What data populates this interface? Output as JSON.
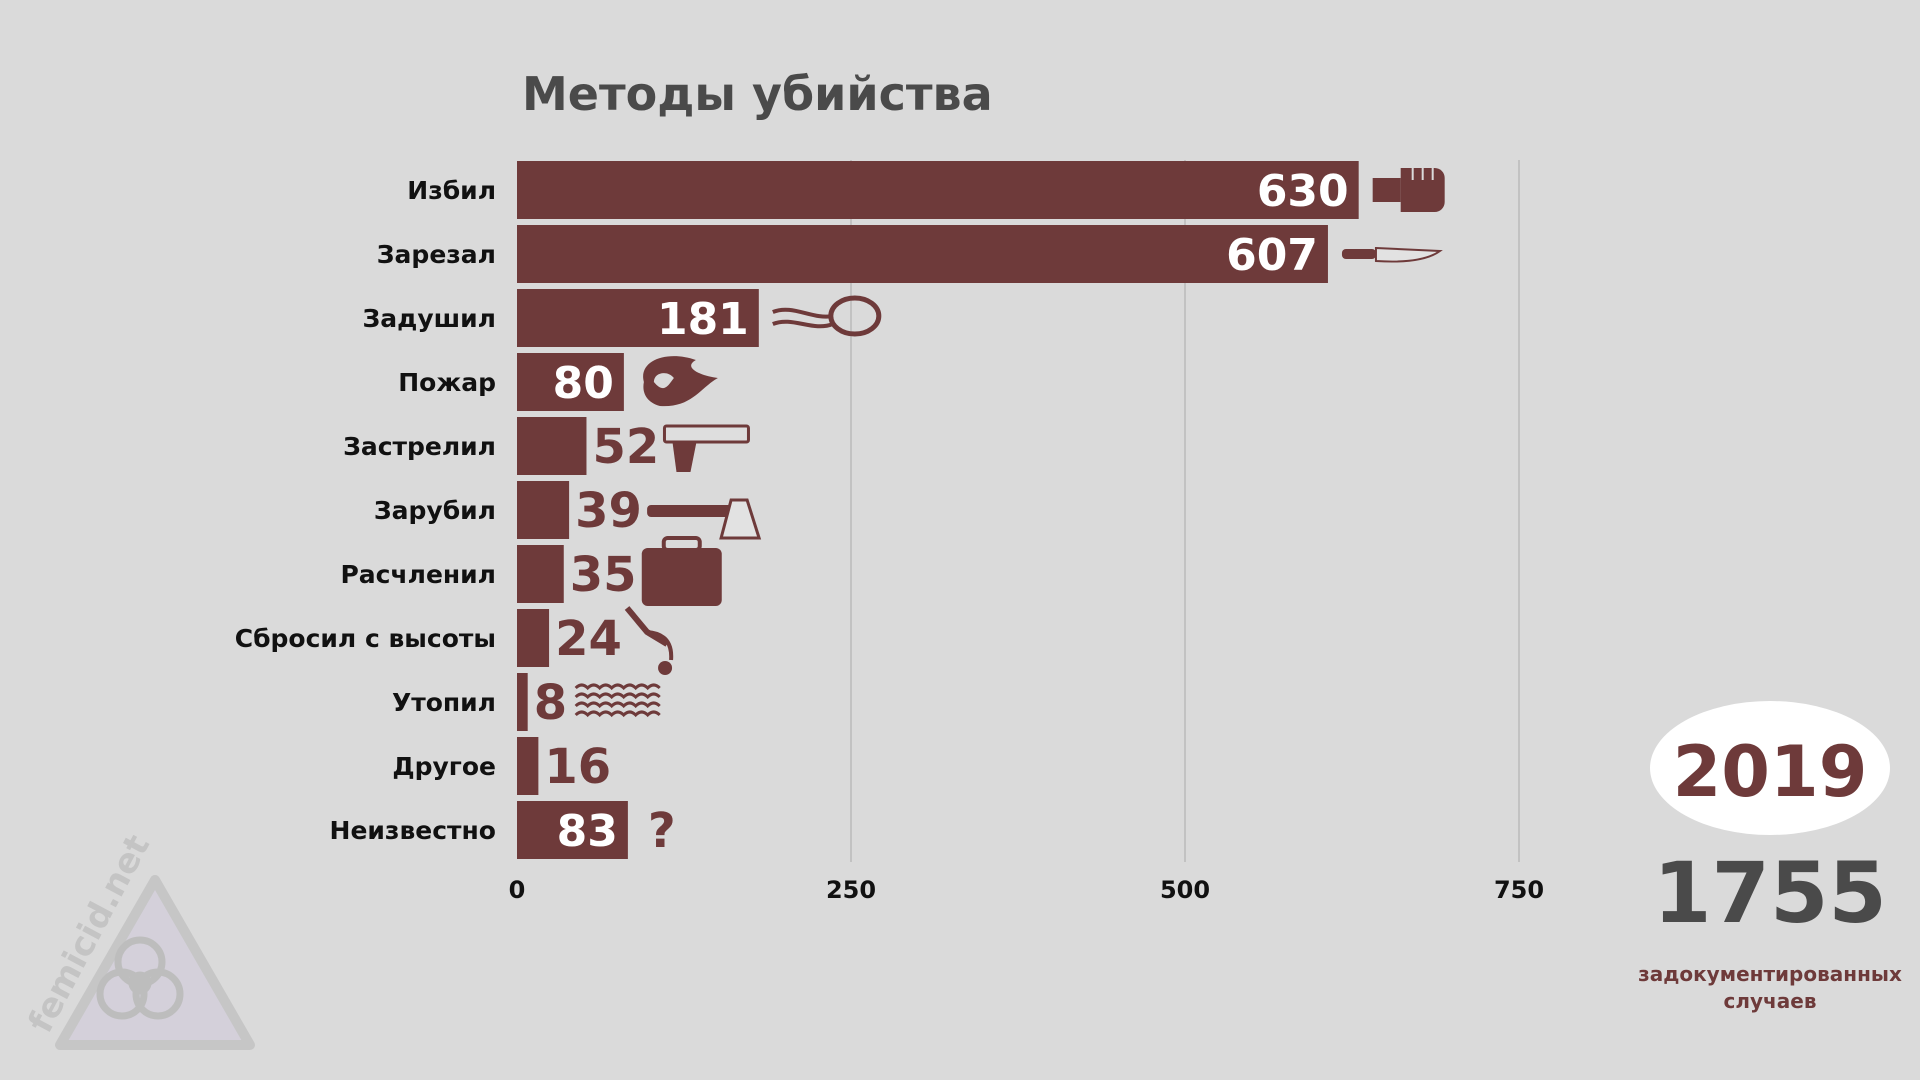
{
  "chart_data": {
    "type": "bar",
    "orientation": "horizontal",
    "title": "Методы убийства",
    "categories": [
      "Избил",
      "Зарезал",
      "Задушил",
      "Пожар",
      "Застрелил",
      "Зарубил",
      "Расчленил",
      "Сбросил с высоты",
      "Утопил",
      "Другое",
      "Неизвестно"
    ],
    "values": [
      630,
      607,
      181,
      80,
      52,
      39,
      35,
      24,
      8,
      16,
      83
    ],
    "icons": [
      "fist-icon",
      "knife-icon",
      "noose-icon",
      "fire-icon",
      "pistol-icon",
      "axe-icon",
      "suitcase-icon",
      "falling-person-icon",
      "waves-icon",
      "",
      "question-icon"
    ],
    "xticks": [
      0,
      250,
      500,
      750
    ],
    "xlim": [
      0,
      750
    ],
    "grid": true,
    "bar_color": "#6e3a3a",
    "xlabel": "",
    "ylabel": ""
  },
  "summary": {
    "year": "2019",
    "total": "1755",
    "caption_line1": "задокументированных",
    "caption_line2": "случаев"
  },
  "watermark": {
    "text": "femicid.net",
    "icon": "biohazard-icon"
  },
  "unknown_mark": "?"
}
